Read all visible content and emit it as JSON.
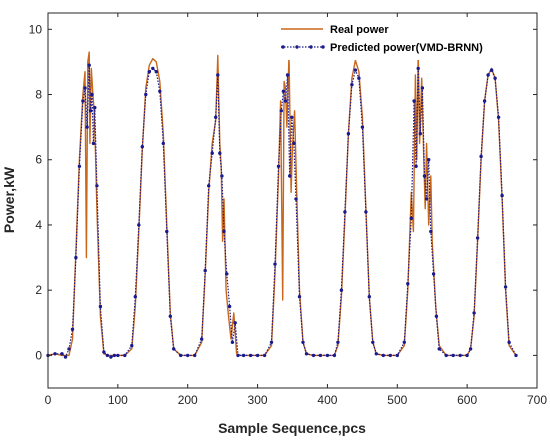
{
  "chart_data": {
    "type": "line",
    "xlabel": "Sample Sequence,pcs",
    "ylabel": "Power,kW",
    "xlim": [
      0,
      700
    ],
    "ylim": [
      -1,
      10.5
    ],
    "xticks": [
      0,
      100,
      200,
      300,
      400,
      500,
      600,
      700
    ],
    "yticks": [
      0,
      2,
      4,
      6,
      8,
      10
    ],
    "grid": false,
    "legend_position": "top-right",
    "series": [
      {
        "name": "Real power",
        "color": "#C8661A",
        "style": "solid",
        "x": [
          0,
          10,
          20,
          30,
          35,
          40,
          45,
          50,
          53,
          55,
          57,
          59,
          60,
          62,
          64,
          66,
          68,
          70,
          75,
          80,
          85,
          90,
          95,
          100,
          110,
          120,
          125,
          130,
          135,
          140,
          145,
          150,
          155,
          160,
          165,
          170,
          175,
          180,
          190,
          200,
          210,
          220,
          225,
          230,
          235,
          240,
          243,
          246,
          248,
          250,
          252,
          255,
          258,
          262,
          266,
          270,
          275,
          280,
          290,
          300,
          310,
          320,
          325,
          330,
          333,
          336,
          338,
          340,
          342,
          345,
          348,
          350,
          353,
          356,
          360,
          365,
          370,
          380,
          390,
          400,
          410,
          415,
          420,
          425,
          430,
          435,
          440,
          445,
          450,
          455,
          460,
          465,
          470,
          480,
          490,
          500,
          510,
          515,
          520,
          523,
          526,
          528,
          530,
          532,
          535,
          538,
          540,
          542,
          545,
          548,
          550,
          555,
          560,
          570,
          580,
          590,
          600,
          605,
          610,
          615,
          620,
          625,
          630,
          635,
          640,
          645,
          650,
          655,
          660,
          670
        ],
        "y": [
          0,
          0.05,
          0,
          0,
          0.5,
          3.2,
          6.0,
          8.0,
          8.7,
          3.0,
          9.0,
          9.3,
          6.5,
          8.8,
          8.1,
          7.5,
          6.2,
          4.5,
          1.2,
          0.05,
          0,
          0,
          0,
          0,
          0,
          0.2,
          1.5,
          3.8,
          6.3,
          8.2,
          8.9,
          9.1,
          9.0,
          8.4,
          6.8,
          4.0,
          1.3,
          0.2,
          0,
          0,
          0,
          0.4,
          2.5,
          5.0,
          6.5,
          7.2,
          9.2,
          6.5,
          5.8,
          3.5,
          4.8,
          2.0,
          1.3,
          0.5,
          1.3,
          0.05,
          0,
          0,
          0,
          0,
          0,
          0.3,
          2.5,
          5.5,
          7.8,
          1.7,
          8.4,
          8.2,
          7.0,
          9.2,
          5.0,
          6.4,
          7.5,
          5.0,
          2.0,
          0.4,
          0.05,
          0,
          0,
          0,
          0,
          0.3,
          1.8,
          4.2,
          6.8,
          8.5,
          9.05,
          8.7,
          7.3,
          4.5,
          1.8,
          0.4,
          0.05,
          0,
          0,
          0,
          0.3,
          2.0,
          5.0,
          3.8,
          8.6,
          6.0,
          9.3,
          6.5,
          8.5,
          6.0,
          4.5,
          6.5,
          4.0,
          5.5,
          3.5,
          1.5,
          0.3,
          0,
          0,
          0,
          0,
          0.2,
          1.2,
          3.5,
          6.0,
          7.8,
          8.6,
          8.8,
          8.5,
          7.2,
          4.8,
          2.0,
          0.3,
          0
        ]
      },
      {
        "name": "Predicted power(VMD-BRNN)",
        "color": "#1A1A8C",
        "style": "dotted-marker",
        "x": [
          0,
          10,
          20,
          25,
          30,
          35,
          40,
          45,
          50,
          53,
          56,
          59,
          61,
          63,
          65,
          67,
          70,
          75,
          80,
          85,
          90,
          95,
          100,
          110,
          120,
          125,
          130,
          135,
          140,
          145,
          150,
          155,
          160,
          165,
          170,
          175,
          180,
          190,
          200,
          210,
          220,
          225,
          230,
          235,
          240,
          243,
          246,
          249,
          252,
          256,
          260,
          264,
          268,
          272,
          280,
          290,
          300,
          310,
          320,
          325,
          330,
          334,
          337,
          340,
          343,
          346,
          349,
          352,
          355,
          360,
          365,
          370,
          380,
          390,
          400,
          410,
          415,
          420,
          425,
          430,
          435,
          440,
          445,
          450,
          455,
          460,
          465,
          470,
          480,
          490,
          500,
          510,
          515,
          520,
          524,
          527,
          530,
          533,
          536,
          539,
          542,
          545,
          548,
          552,
          556,
          560,
          570,
          580,
          590,
          600,
          605,
          610,
          615,
          620,
          625,
          630,
          635,
          640,
          645,
          650,
          655,
          660,
          670
        ],
        "y": [
          0,
          0.05,
          0.05,
          -0.05,
          0.2,
          0.8,
          3.0,
          5.8,
          7.8,
          8.2,
          7.0,
          8.9,
          7.5,
          8.0,
          6.5,
          7.6,
          5.2,
          1.5,
          0.1,
          0,
          -0.05,
          0,
          0,
          0,
          0.3,
          1.8,
          4.0,
          6.4,
          8.0,
          8.7,
          8.8,
          8.7,
          8.1,
          6.5,
          3.8,
          1.2,
          0.2,
          0,
          0,
          0,
          0.5,
          2.6,
          5.2,
          6.2,
          7.3,
          8.6,
          6.2,
          5.5,
          3.8,
          2.5,
          1.5,
          0.4,
          1.0,
          0,
          0,
          0,
          0,
          0,
          0.4,
          2.8,
          5.8,
          7.5,
          8.1,
          7.8,
          8.6,
          5.5,
          7.3,
          6.5,
          4.8,
          1.8,
          0.4,
          0.05,
          0,
          0,
          0,
          0,
          0.4,
          2.0,
          4.4,
          6.8,
          8.3,
          8.75,
          8.5,
          7.0,
          4.4,
          1.8,
          0.4,
          0.05,
          0,
          0,
          0,
          0.4,
          2.2,
          4.2,
          7.8,
          5.8,
          8.8,
          6.8,
          8.2,
          5.5,
          4.8,
          6.0,
          3.8,
          2.5,
          1.2,
          0.2,
          0,
          0,
          0,
          0,
          0.2,
          1.3,
          3.6,
          6.1,
          7.8,
          8.6,
          8.75,
          8.5,
          7.3,
          4.9,
          2.1,
          0.4,
          0
        ]
      }
    ]
  }
}
